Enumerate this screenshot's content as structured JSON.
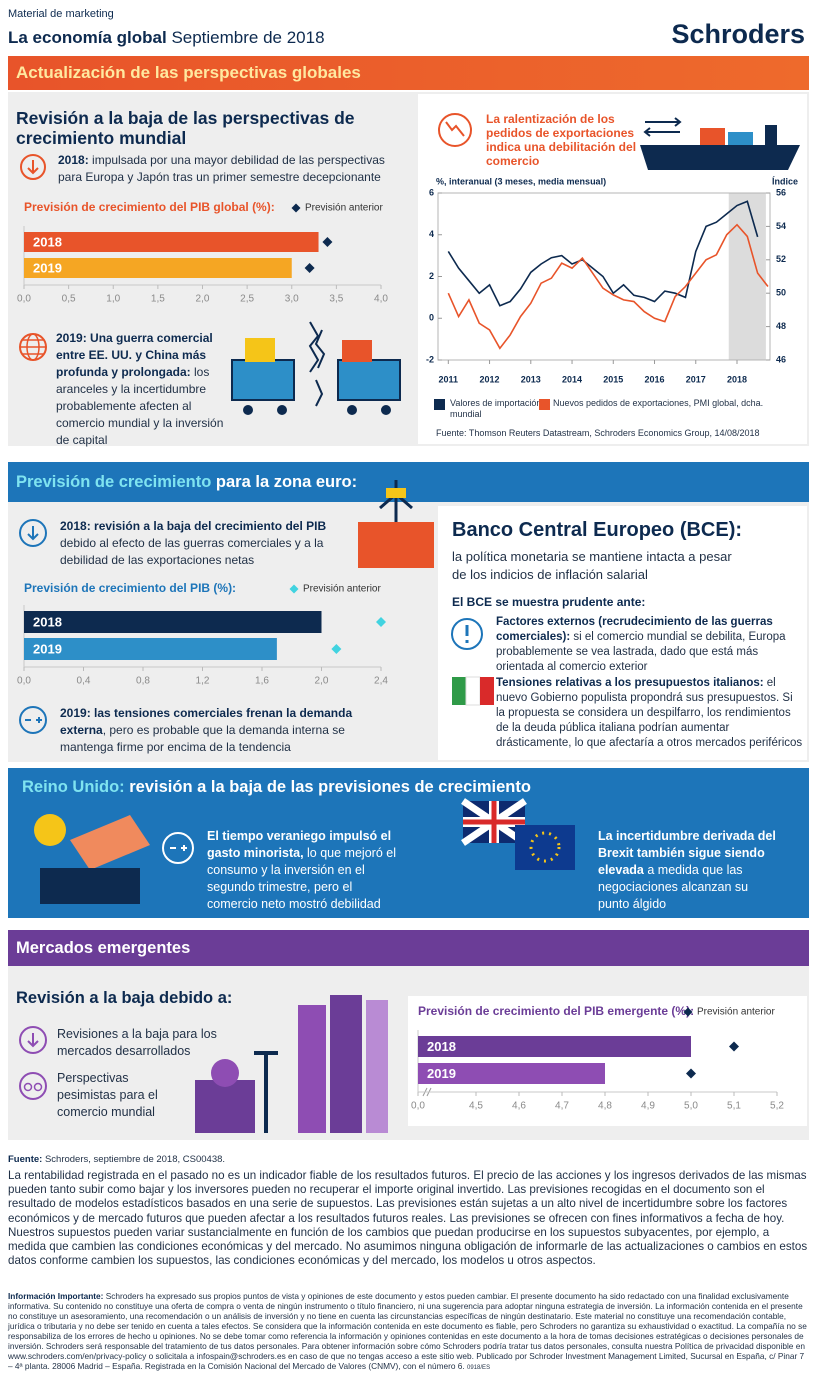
{
  "header": {
    "tag": "Material de marketing",
    "title_bold": "La economía global",
    "title_rest": "Septiembre de 2018",
    "logo": "Schroders"
  },
  "global": {
    "banner": "Actualización de las perspectivas globales",
    "heading": "Revisión a la baja de las perspectivas de crecimiento mundial",
    "p2018_bold": "2018:",
    "p2018": "impulsada por una mayor debilidad de las perspectivas para Europa y Japón tras un primer semestre decepcionante",
    "p2019_bold": "2019: Una guerra comercial entre EE. UU. y China más profunda y prolongada:",
    "p2019": "los aranceles y la incertidumbre probablemente afecten al comercio mundial y la inversión de capital",
    "trade_heading": "La ralentización de los pedidos de exportaciones indica una debilitación del comercio",
    "source": "Fuente: Thomson Reuters Datastream, Schroders Economics Group, 14/08/2018"
  },
  "euro": {
    "banner_highlight": "Previsión de crecimiento",
    "banner_rest": "para la zona euro:",
    "p2018_bold": "2018: revisión a la baja del crecimiento del PIB",
    "p2018": "debido al efecto de las guerras comerciales y a la debilidad de las exportaciones netas",
    "p2019_bold": "2019: las tensiones comerciales frenan la demanda externa",
    "p2019": ", pero es probable que la demanda interna se mantenga firme por encima de la tendencia",
    "ecb_heading": "Banco Central Europeo (BCE):",
    "ecb_sub": "la política monetaria se mantiene intacta a pesar de los indicios de inflación salarial",
    "ecb_prudent": "El BCE se muestra prudente ante:",
    "risk1_bold": "Factores externos (recrudecimiento de las guerras comerciales):",
    "risk1": "si el comercio mundial se debilita, Europa probablemente se vea lastrada, dado que está más orientada al comercio exterior",
    "risk2_bold": "Tensiones relativas a los presupuestos italianos:",
    "risk2": "el nuevo Gobierno populista propondrá sus presupuestos. Si la propuesta se considera un despilfarro, los rendimientos de la deuda pública italiana podrían aumentar drásticamente, lo que afectaría a otros mercados periféricos"
  },
  "uk": {
    "banner_highlight": "Reino Unido:",
    "banner_rest": "revisión a la baja de las previsiones de crecimiento",
    "left_bold": "El tiempo veraniego impulsó el gasto minorista,",
    "left": "lo que mejoró el consumo y la inversión en el segundo trimestre, pero el comercio neto mostró debilidad",
    "right_bold": "La incertidumbre derivada del Brexit también sigue siendo elevada",
    "right": "a medida que las negociaciones alcanzan su punto álgido"
  },
  "em": {
    "banner": "Mercados emergentes",
    "heading": "Revisión a la baja debido a:",
    "item1": "Revisiones a la baja para los mercados desarrollados",
    "item2": "Perspectivas pesimistas para el comercio mundial"
  },
  "footer": {
    "source_bold": "Fuente:",
    "source": "Schroders, septiembre de 2018, CS00438.",
    "disclaimer": "La rentabilidad registrada en el pasado no es un indicador fiable de los resultados futuros. El precio de las acciones y los ingresos derivados de las mismas pueden tanto subir como bajar y los inversores pueden no recuperar el importe original invertido. Las previsiones recogidas en el documento son el resultado de modelos estadísticos basados en una serie de supuestos. Las previsiones están sujetas a un alto nivel de incertidumbre sobre los factores económicos y de mercado futuros que pueden afectar a los resultados futuros reales. Las previsiones se ofrecen con fines informativos a fecha de hoy. Nuestros supuestos pueden variar sustancialmente en función de los cambios que puedan producirse en los supuestos subyacentes, por ejemplo, a medida que cambien las condiciones económicas y del mercado. No asumimos ninguna obligación de informarle de las actualizaciones o cambios en estos datos conforme cambien los supuestos, las condiciones económicas y del mercado, los modelos u otros aspectos.",
    "important_bold": "Información Importante:",
    "important": "Schroders ha expresado sus propios puntos de vista y opiniones de este documento y estos pueden cambiar. El presente documento ha sido redactado con una finalidad exclusivamente informativa. Su contenido no constituye una oferta de compra o venta de ningún instrumento o título financiero, ni una sugerencia para adoptar ninguna estrategia de inversión. La información contenida en el presente no constituye un asesoramiento, una recomendación o un análisis de inversión y no tiene en cuenta las circunstancias específicas de ningún destinatario. Este material no constituye una recomendación contable, jurídica o tributaria y no debe ser tenido en cuenta a tales efectos. Se considera que la información contenida en este documento es fiable, pero Schroders no garantiza su exhaustividad o exactitud. La compañía no se responsabiliza de los errores de hecho u opiniones. No se debe tomar como referencia la información y opiniones contenidas en este documento a la hora de tomas decisiones estratégicas o decisiones personales de inversión. Schroders será responsable del tratamiento de tus datos personales. Para obtener información sobre cómo Schroders podría tratar tus datos personales, consulta nuestra Política de privacidad disponible en www.schroders.com/en/privacy-policy o solicitala a infospain@schroders.es en caso de que no tengas acceso a este sitio web. Publicado por Schroder Investment Management Limited, Sucursal en España, c/ Pinar 7 – 4ª planta. 28006 Madrid – España. Registrada en la Comisión Nacional del Mercado de Valores (CNMV), con el número 6.",
    "code": "0918/ES"
  },
  "chart_data": [
    {
      "type": "bar",
      "title": "Previsión de crecimiento del PIB global (%):",
      "title_color": "#e8542a",
      "categories": [
        "2018",
        "2019"
      ],
      "values": [
        3.3,
        3.0
      ],
      "colors": [
        "#e8542a",
        "#f5a623"
      ],
      "previous": {
        "name": "Previsión anterior",
        "values": [
          3.4,
          3.2
        ],
        "color": "#0d2a4f"
      },
      "xlim": [
        0,
        4
      ],
      "xticks": [
        {
          "value": 0,
          "label": "0,0"
        },
        {
          "value": 0.5,
          "label": "0,5"
        },
        {
          "value": 1,
          "label": "1,0"
        },
        {
          "value": 1.5,
          "label": "1,5"
        },
        {
          "value": 2,
          "label": "2,0"
        },
        {
          "value": 2.5,
          "label": "2,5"
        },
        {
          "value": 3,
          "label": "3,0"
        },
        {
          "value": 3.5,
          "label": "3,5"
        },
        {
          "value": 4,
          "label": "4,0"
        }
      ]
    },
    {
      "type": "bar",
      "title": "Previsión de crecimiento del PIB (%):",
      "title_color": "#1d75b9",
      "categories": [
        "2018",
        "2019"
      ],
      "values": [
        2.0,
        1.7
      ],
      "colors": [
        "#0d2a4f",
        "#2d8fc8"
      ],
      "previous": {
        "name": "Previsión anterior",
        "values": [
          2.4,
          2.1
        ],
        "color": "#41d3e0"
      },
      "xlim": [
        0,
        2.4
      ],
      "xticks": [
        {
          "value": 0,
          "label": "0,0"
        },
        {
          "value": 0.4,
          "label": "0,4"
        },
        {
          "value": 0.8,
          "label": "0,8"
        },
        {
          "value": 1.2,
          "label": "1,2"
        },
        {
          "value": 1.6,
          "label": "1,6"
        },
        {
          "value": 2,
          "label": "2,0"
        },
        {
          "value": 2.4,
          "label": "2,4"
        }
      ]
    },
    {
      "type": "bar",
      "title": "Previsión de crecimiento del PIB emergente (%):",
      "title_color": "#6b3d97",
      "categories": [
        "2018",
        "2019"
      ],
      "values": [
        5.0,
        4.8
      ],
      "colors": [
        "#6b3d97",
        "#8e4db3"
      ],
      "previous": {
        "name": "Previsión anterior",
        "values": [
          5.1,
          5.0
        ],
        "color": "#0d2a4f"
      },
      "xlim": [
        0,
        5.2
      ],
      "axis_break": true,
      "xticks": [
        {
          "value": 0,
          "label": "0,0"
        },
        {
          "value": 4.5,
          "label": "4,5"
        },
        {
          "value": 4.6,
          "label": "4,6"
        },
        {
          "value": 4.7,
          "label": "4,7"
        },
        {
          "value": 4.8,
          "label": "4,8"
        },
        {
          "value": 4.9,
          "label": "4,9"
        },
        {
          "value": 5,
          "label": "5,0"
        },
        {
          "value": 5.1,
          "label": "5,1"
        },
        {
          "value": 5.2,
          "label": "5,2"
        }
      ]
    },
    {
      "type": "line",
      "y_label": "%, interanual (3 meses, media mensual)",
      "y2_label": "Índice",
      "x": [
        2011,
        2011.25,
        2011.5,
        2011.75,
        2012,
        2012.25,
        2012.5,
        2012.75,
        2013,
        2013.25,
        2013.5,
        2013.75,
        2014,
        2014.25,
        2014.5,
        2014.75,
        2015,
        2015.25,
        2015.5,
        2015.75,
        2016,
        2016.25,
        2016.5,
        2016.75,
        2017,
        2017.25,
        2017.5,
        2017.75,
        2018,
        2018.25,
        2018.5,
        2018.75
      ],
      "series": [
        {
          "name": "Valores de importación mundial",
          "color": "#0d2a4f",
          "values": [
            3.2,
            2.4,
            1.8,
            1.2,
            1.6,
            0.6,
            0.8,
            1.4,
            2.2,
            2.6,
            2.9,
            3.0,
            2.6,
            2.8,
            2.4,
            2.0,
            1.2,
            1.6,
            1.1,
            1.0,
            0.8,
            1.3,
            1.2,
            1.0,
            3.2,
            4.4,
            4.6,
            5.0,
            5.4,
            5.6,
            3.9,
            null
          ]
        },
        {
          "name": "Nuevos pedidos de exportaciones, PMI global, dcha.",
          "color": "#e8542a",
          "axis": "y2",
          "values": [
            50.0,
            48.6,
            49.6,
            48.2,
            47.8,
            46.7,
            47.5,
            48.6,
            49.4,
            50.6,
            50.9,
            51.8,
            51.5,
            52.1,
            51.2,
            50.3,
            49.9,
            49.6,
            49.5,
            48.9,
            48.5,
            48.3,
            49.8,
            50.4,
            51.2,
            52.0,
            52.3,
            53.5,
            54.1,
            53.4,
            51.2,
            50.4
          ]
        }
      ],
      "highlight": [
        2017.8,
        2018.7
      ],
      "highlight_color": "#dcdcdc",
      "xlim": [
        2010.75,
        2018.8
      ],
      "xticks": [
        2011,
        2012,
        2013,
        2014,
        2015,
        2016,
        2017,
        2018
      ],
      "ylim": [
        -2,
        6
      ],
      "yticks": [
        -2,
        0,
        2,
        4,
        6
      ],
      "y2lim": [
        46,
        56
      ],
      "y2ticks": [
        46,
        48,
        50,
        52,
        54,
        56
      ],
      "grid": false
    }
  ]
}
